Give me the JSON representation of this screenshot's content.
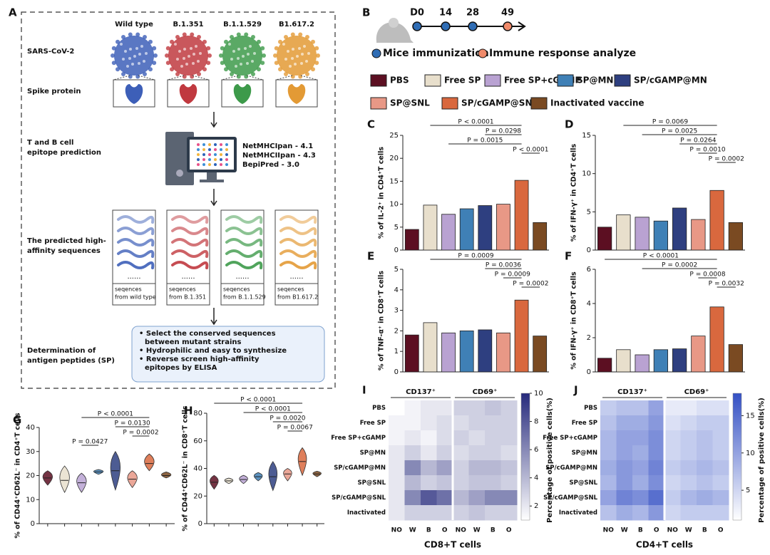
{
  "panel_a": {
    "label": "A",
    "variants": [
      "Wild type",
      "B.1.351",
      "B.1.1.529",
      "B1.617.2"
    ],
    "variant_colors": [
      "#3d5fb8",
      "#c0393f",
      "#3d9a4a",
      "#e39a35"
    ],
    "rows": [
      [
        "SARS-CoV-2"
      ],
      [
        "Spike protein"
      ],
      [
        "T and B cell",
        "epitope prediction"
      ],
      [
        "The predicted high-",
        "affinity  sequences"
      ],
      [
        "Determination of",
        "antigen peptides (SP)"
      ]
    ],
    "tools": [
      "NetMHCIpan - 4.1",
      "NetMHCIIpan - 4.3",
      "BepiPred - 3.0"
    ],
    "sequence_dots": [
      "......",
      "......",
      "......",
      "......"
    ],
    "sequence_labels": [
      [
        "seqences",
        "from wild type"
      ],
      [
        "seqences",
        "from B.1.351"
      ],
      [
        "seqences",
        "from B.1.1.529"
      ],
      [
        "seqences",
        "from B1.617.2"
      ]
    ],
    "steps": [
      [
        "• Select the conserved sequences",
        "between mutant strains"
      ],
      [
        "• Hydrophilic and easy to synthesize"
      ],
      [
        "• Reverse screen high-affinity",
        "epitopes by ELISA"
      ]
    ]
  },
  "panel_b": {
    "label": "B",
    "days": [
      "D0",
      "14",
      "28",
      "49"
    ],
    "legend": [
      "Mice immunization",
      "Immune response analyze"
    ],
    "colors": [
      "#2f6db5",
      "#f08a6a"
    ]
  },
  "groups": {
    "names": [
      "PBS",
      "Free SP",
      "Free SP+cGAMP",
      "SP@MN",
      "SP/cGAMP@MN",
      "SP@SNL",
      "SP/cGAMP@SNL",
      "Inactivated vaccine"
    ],
    "colors": [
      "#5c0f22",
      "#e8dfcc",
      "#b9a2d2",
      "#3f80b6",
      "#2e3f80",
      "#e89886",
      "#d9683e",
      "#7a4a22"
    ]
  },
  "chart_data": [
    {
      "type": "bar",
      "label": "C",
      "y_label": "% of IL-2⁺ in CD4⁺T cells",
      "values": [
        4.5,
        9.8,
        7.8,
        9,
        9.7,
        10,
        15.2,
        6
      ],
      "ylim": [
        0,
        25
      ],
      "yticks": [
        0,
        5,
        10,
        15,
        20,
        25
      ],
      "annotations": [
        "P < 0.0001",
        "P = 0.0298",
        "P = 0.0015",
        "P < 0.0001"
      ]
    },
    {
      "type": "bar",
      "label": "D",
      "y_label": "% of IFN-γ⁺ in CD4⁺T cells",
      "values": [
        3,
        4.6,
        4.3,
        3.8,
        5.5,
        4,
        7.8,
        3.6
      ],
      "ylim": [
        0,
        15
      ],
      "yticks": [
        0,
        5,
        10,
        15
      ],
      "annotations": [
        "P = 0.0069",
        "P = 0.0025",
        "P = 0.0264",
        "P = 0.0010",
        "P = 0.0002"
      ]
    },
    {
      "type": "bar",
      "label": "E",
      "y_label": "% of TNF-α⁺ in CD8⁺T cells",
      "values": [
        1.8,
        2.4,
        1.9,
        2,
        2.05,
        1.9,
        3.5,
        1.75
      ],
      "ylim": [
        0,
        5
      ],
      "yticks": [
        0,
        1,
        2,
        3,
        4,
        5
      ],
      "annotations": [
        "P = 0.0009",
        "P = 0.0036",
        "P = 0.0009",
        "P = 0.0002"
      ]
    },
    {
      "type": "bar",
      "label": "F",
      "y_label": "% of IFN-γ⁺ in CD8⁺T cells",
      "values": [
        0.8,
        1.3,
        1.0,
        1.3,
        1.35,
        2.1,
        3.8,
        1.6
      ],
      "ylim": [
        0,
        6
      ],
      "yticks": [
        0,
        2,
        4,
        6
      ],
      "annotations": [
        "P < 0.0001",
        "P = 0.0002",
        "P = 0.0008",
        "P = 0.0032"
      ]
    },
    {
      "type": "violin",
      "label": "G",
      "y_label": "% of CD44⁺CD62L⁻ in CD4⁺T cells",
      "values": [
        19,
        18,
        17,
        21.5,
        22,
        18.5,
        25,
        20
      ],
      "ranges": [
        [
          16,
          22
        ],
        [
          13,
          24
        ],
        [
          13,
          21
        ],
        [
          20.5,
          22.5
        ],
        [
          14,
          30
        ],
        [
          15,
          22
        ],
        [
          22,
          29
        ],
        [
          19,
          21.5
        ]
      ],
      "ylim": [
        0,
        40
      ],
      "yticks": [
        0,
        10,
        20,
        30,
        40
      ],
      "annotations": [
        "P < 0.0001",
        "P = 0.0130",
        "P = 0.0002",
        "P = 0.0427"
      ]
    },
    {
      "type": "violin",
      "label": "H",
      "y_label": "% of CD44⁺CD62L⁻ in CD8⁺T cells",
      "values": [
        30,
        31,
        32,
        34,
        34,
        36,
        45,
        36
      ],
      "ranges": [
        [
          25,
          35
        ],
        [
          29,
          33
        ],
        [
          29,
          35
        ],
        [
          31,
          37
        ],
        [
          24,
          45
        ],
        [
          31,
          40
        ],
        [
          35,
          55
        ],
        [
          34,
          38
        ]
      ],
      "ylim": [
        0,
        80
      ],
      "yticks": [
        0,
        20,
        40,
        60,
        80
      ],
      "annotations": [
        "P < 0.0001",
        "P < 0.0001",
        "P = 0.0020",
        "P = 0.0067"
      ]
    },
    {
      "type": "heatmap",
      "label": "I",
      "x_label": "CD8+T cells",
      "colorbar_label": "Percentage of positive cells(%)",
      "rows": [
        "PBS",
        "Free SP",
        "Free SP+cGAMP",
        "SP@MN",
        "SP/cGAMP@MN",
        "SP@SNL",
        "SP/cGAMP@SNL",
        "Inactivated"
      ],
      "columns": [
        "NO",
        "W",
        "B",
        "O",
        "NO",
        "W",
        "B",
        "O"
      ],
      "column_groups": [
        "CD137⁺",
        "CD69⁺"
      ],
      "values": [
        [
          1,
          1.5,
          2,
          2,
          3,
          3,
          3.5,
          3
        ],
        [
          1.5,
          1.5,
          2,
          2.5,
          2.5,
          3,
          3,
          3
        ],
        [
          1.5,
          2,
          1.5,
          2.5,
          3,
          2.5,
          3,
          3
        ],
        [
          2,
          3,
          2,
          3,
          2.5,
          3,
          3,
          2.5
        ],
        [
          2,
          6,
          4,
          5,
          3,
          4,
          4,
          3.5
        ],
        [
          2,
          4,
          3,
          3.5,
          3,
          3.5,
          3.5,
          3
        ],
        [
          2,
          6,
          8,
          7,
          4,
          5,
          6,
          6
        ],
        [
          2,
          3,
          3,
          3,
          3,
          3.5,
          3,
          3
        ]
      ],
      "zlim": [
        1,
        10
      ],
      "zticks": [
        2,
        4,
        6,
        8,
        10
      ],
      "colors": [
        "#ffffff",
        "#262a7c"
      ]
    },
    {
      "type": "heatmap",
      "label": "J",
      "x_label": "CD4+T cells",
      "colorbar_label": "Percentage of positive cells(%)",
      "rows": [
        "PBS",
        "Free SP",
        "Free SP+cGAMP",
        "SP@MN",
        "SP/cGAMP@MN",
        "SP@SNL",
        "SP/cGAMP@SNL",
        "Inactivated"
      ],
      "columns": [
        "NO",
        "W",
        "B",
        "O",
        "NO",
        "W",
        "B",
        "O"
      ],
      "column_groups": [
        "CD137⁺",
        "CD69⁺"
      ],
      "values": [
        [
          6,
          7,
          7,
          10,
          3,
          3,
          4,
          4
        ],
        [
          7,
          9,
          9,
          11,
          4,
          5,
          6,
          6
        ],
        [
          8,
          10,
          10,
          12,
          5,
          6,
          7,
          6
        ],
        [
          8,
          10,
          9,
          12,
          5,
          6,
          7,
          6
        ],
        [
          9,
          11,
          10,
          13,
          6,
          7,
          8,
          7
        ],
        [
          8,
          11,
          9,
          12,
          5,
          6,
          7,
          6
        ],
        [
          10,
          13,
          12,
          15,
          6,
          8,
          9,
          8
        ],
        [
          7,
          9,
          8,
          11,
          5,
          6,
          6,
          6
        ]
      ],
      "zlim": [
        1,
        18
      ],
      "zticks": [
        5,
        10,
        15
      ],
      "colors": [
        "#ffffff",
        "#3450c4"
      ]
    }
  ]
}
